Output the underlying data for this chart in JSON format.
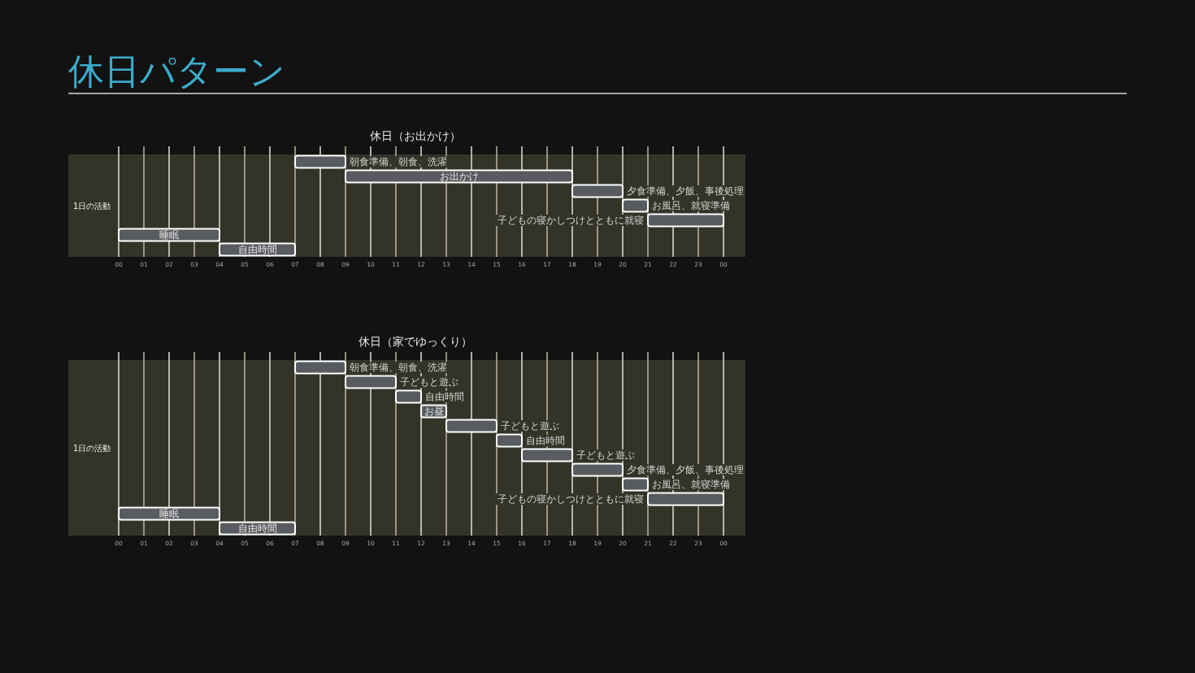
{
  "chart_data": [
    {
      "type": "other",
      "title": "休日パターン"
    },
    {
      "type": "bar",
      "orientation": "horizontal",
      "title": "休日（お出かけ）",
      "ylabel": "1日の活動",
      "categories": [
        "朝食準備、朝食、洗濯",
        "お出かけ",
        "夕食準備、夕飯、事後処理",
        "お風呂、就寝準備",
        "子どもの寝かしつけとともに就寝",
        "睡眠",
        "自由時間"
      ],
      "base": [
        7,
        9,
        18,
        20,
        21,
        0,
        4
      ],
      "values": [
        2,
        9,
        2,
        1,
        3,
        4,
        3
      ],
      "color": "#585b5f",
      "xlim": [
        0,
        24
      ],
      "xticks": [
        {
          "value": 0,
          "label": "00"
        },
        {
          "value": 1,
          "label": "01"
        },
        {
          "value": 2,
          "label": "02"
        },
        {
          "value": 3,
          "label": "03"
        },
        {
          "value": 4,
          "label": "04"
        },
        {
          "value": 5,
          "label": "05"
        },
        {
          "value": 6,
          "label": "06"
        },
        {
          "value": 7,
          "label": "07"
        },
        {
          "value": 8,
          "label": "08"
        },
        {
          "value": 9,
          "label": "09"
        },
        10,
        11,
        12,
        13,
        14,
        15,
        16,
        17,
        18,
        19,
        20,
        21,
        22,
        23,
        {
          "value": 24,
          "label": "00"
        }
      ],
      "grid": "x"
    },
    {
      "type": "bar",
      "orientation": "horizontal",
      "title": "休日（家でゆっくり）",
      "ylabel": "1日の活動",
      "categories": [
        "朝食準備、朝食、洗濯",
        "子どもと遊ぶ",
        "自由時間",
        "お昼",
        "子どもと遊ぶ",
        "自由時間",
        "子どもと遊ぶ",
        "夕食準備、夕飯、事後処理",
        "お風呂、就寝準備",
        "子どもの寝かしつけとともに就寝",
        "睡眠",
        "自由時間"
      ],
      "base": [
        7,
        9,
        11,
        12,
        13,
        15,
        16,
        18,
        20,
        21,
        0,
        4
      ],
      "values": [
        2,
        2,
        1,
        1,
        2,
        1,
        2,
        2,
        1,
        3,
        4,
        3
      ],
      "color": "#585b5f",
      "xlim": [
        0,
        24
      ],
      "xticks": [
        {
          "value": 0,
          "label": "00"
        },
        {
          "value": 1,
          "label": "01"
        },
        {
          "value": 2,
          "label": "02"
        },
        {
          "value": 3,
          "label": "03"
        },
        {
          "value": 4,
          "label": "04"
        },
        {
          "value": 5,
          "label": "05"
        },
        {
          "value": 6,
          "label": "06"
        },
        {
          "value": 7,
          "label": "07"
        },
        {
          "value": 8,
          "label": "08"
        },
        {
          "value": 9,
          "label": "09"
        },
        10,
        11,
        12,
        13,
        14,
        15,
        16,
        17,
        18,
        19,
        20,
        21,
        22,
        23,
        {
          "value": 24,
          "label": "00"
        }
      ],
      "grid": "x"
    }
  ]
}
